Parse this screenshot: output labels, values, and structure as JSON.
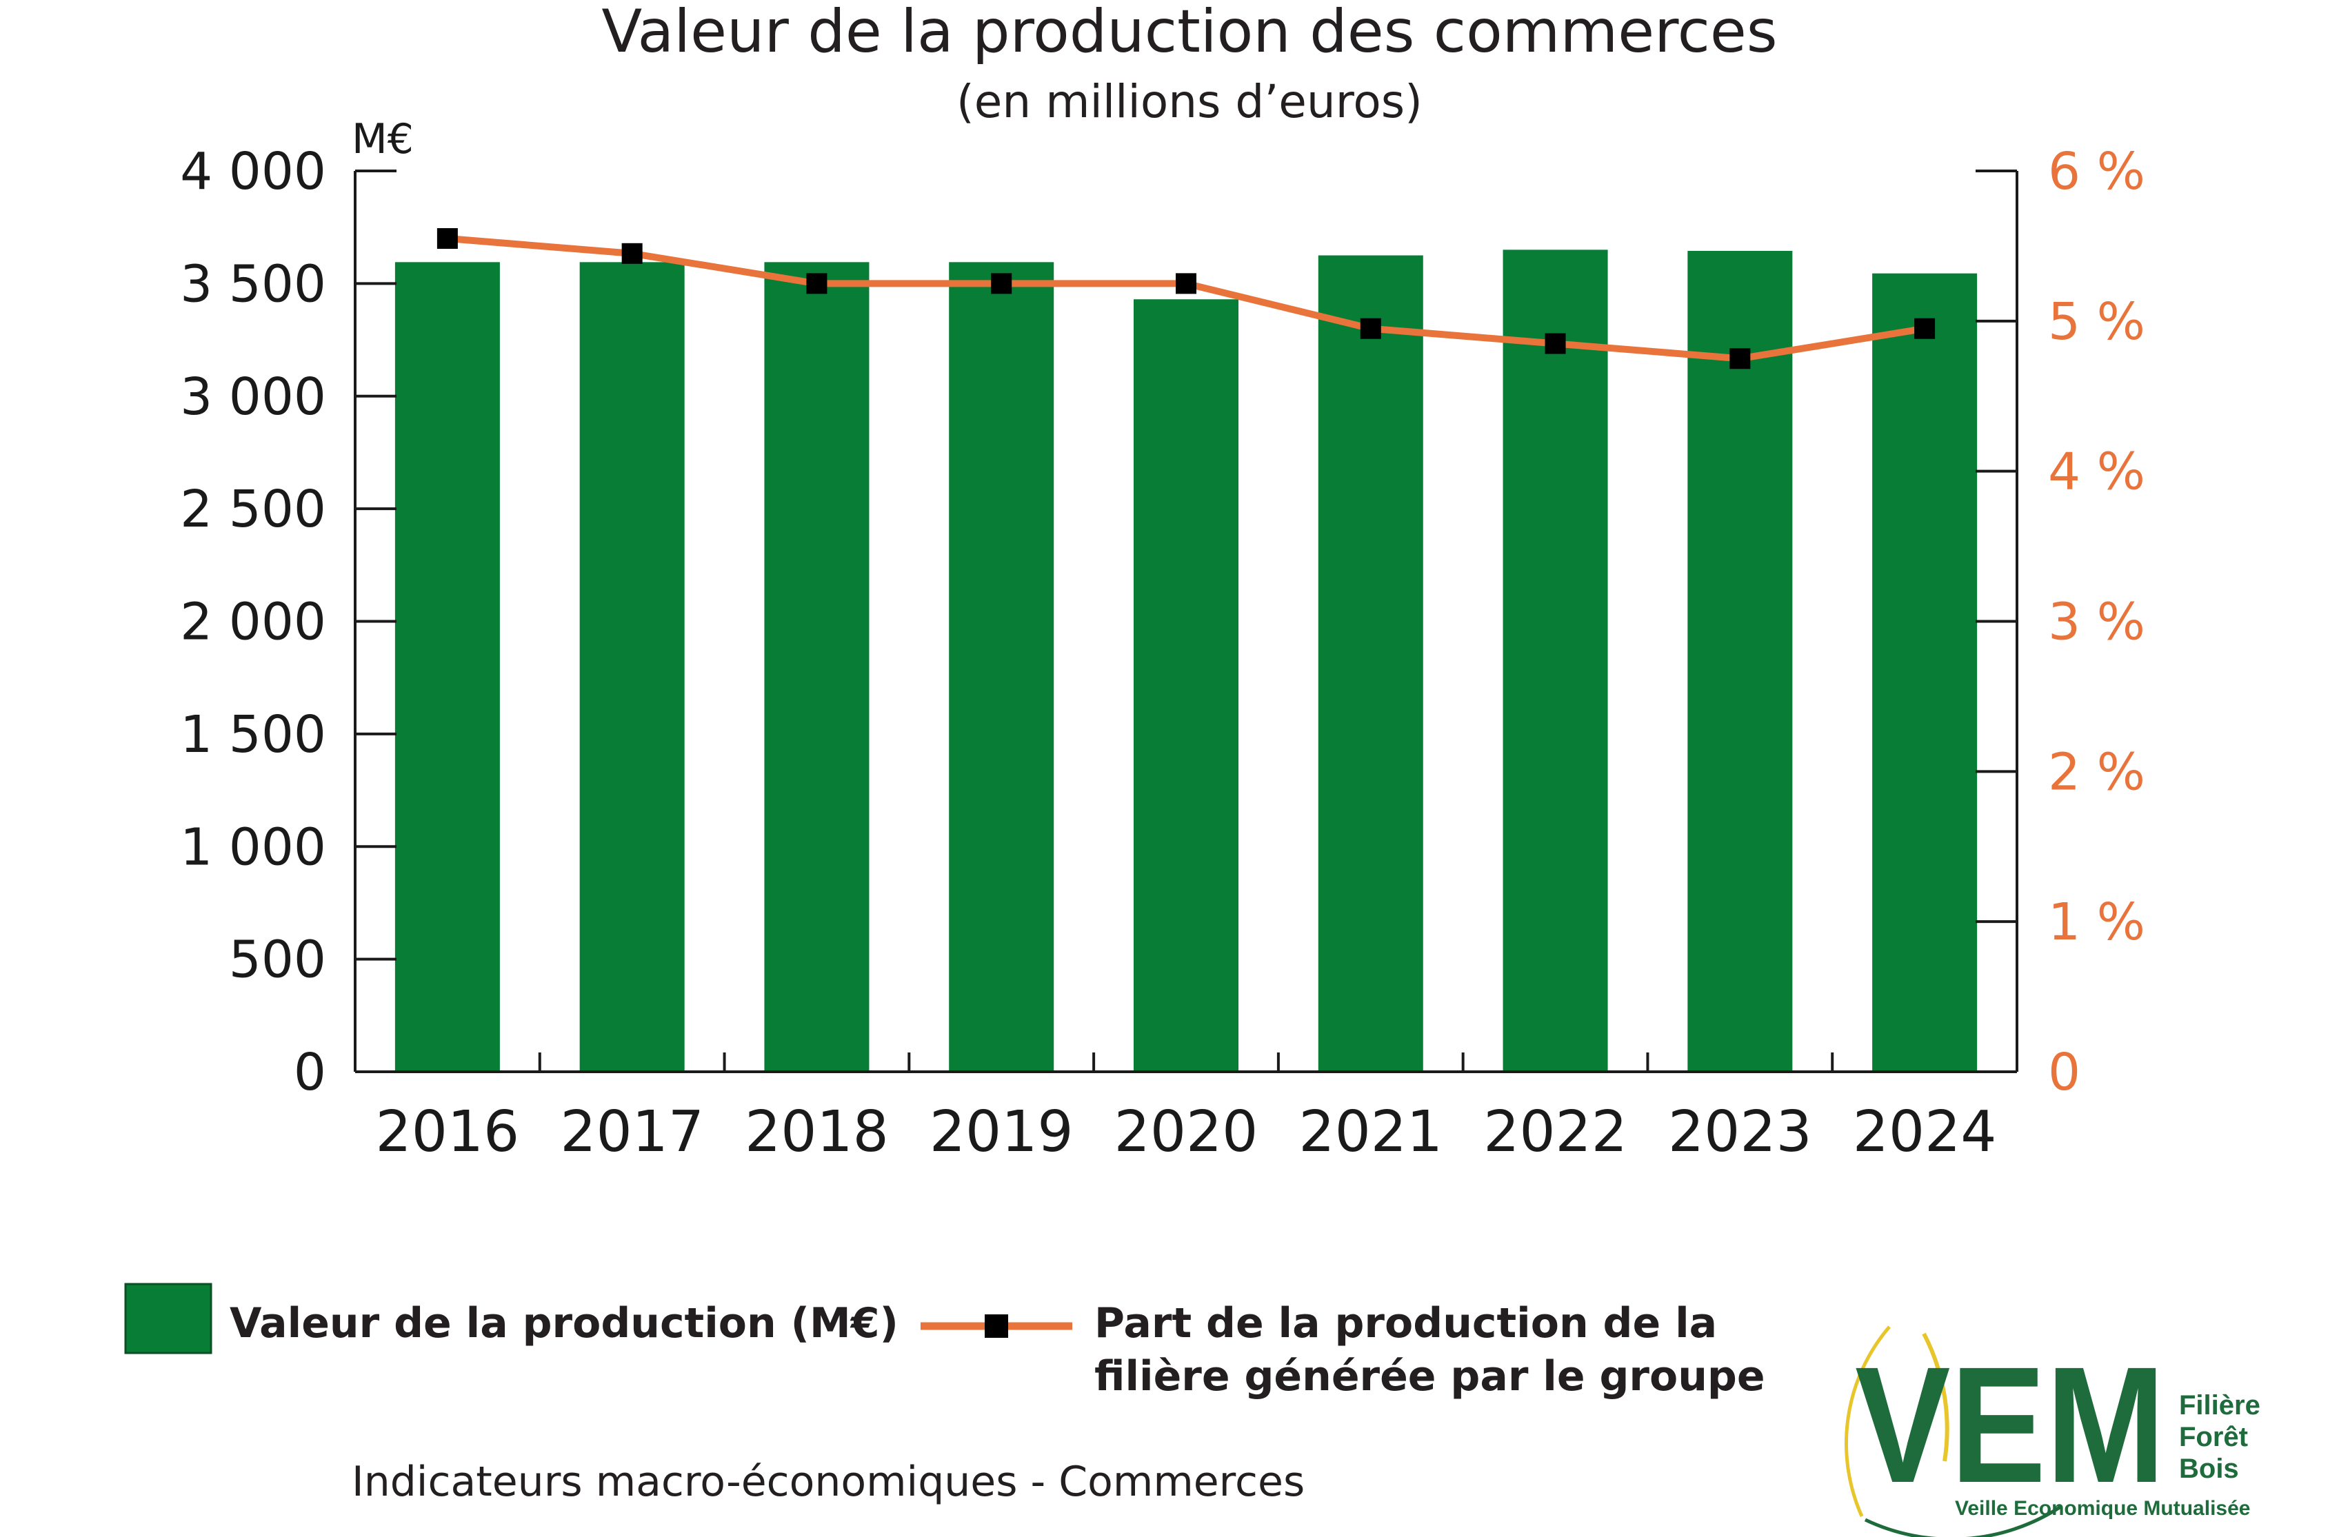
{
  "chart_data": {
    "type": "bar",
    "title": "Valeur de la production des commerces",
    "subtitle": "(en millions d’euros)",
    "y_unit_label": "M€",
    "categories": [
      "2016",
      "2017",
      "2018",
      "2019",
      "2020",
      "2021",
      "2022",
      "2023",
      "2024"
    ],
    "series": [
      {
        "name": "Valeur de la production (M€)",
        "type": "bar",
        "axis": "left",
        "color": "#077d35",
        "values": [
          3595,
          3595,
          3595,
          3595,
          3430,
          3625,
          3650,
          3645,
          3545
        ]
      },
      {
        "name": "Part de la production de la filière générée par le groupe",
        "type": "line",
        "axis": "right",
        "color": "#e8743b",
        "marker_color": "#000000",
        "values": [
          5.55,
          5.45,
          5.25,
          5.25,
          5.25,
          4.95,
          4.85,
          4.75,
          4.95
        ]
      }
    ],
    "ylim_left": [
      0,
      4000
    ],
    "ylim_right": [
      0,
      6
    ],
    "yticks_left": [
      0,
      500,
      1000,
      1500,
      2000,
      2500,
      3000,
      3500,
      4000
    ],
    "yticks_left_labels": [
      "0",
      "500",
      "1 000",
      "1 500",
      "2 000",
      "2 500",
      "3 000",
      "3 500",
      "4 000"
    ],
    "yticks_right": [
      0,
      1,
      2,
      3,
      4,
      5,
      6
    ],
    "yticks_right_labels": [
      "0",
      "1 %",
      "2 %",
      "3 %",
      "4 %",
      "5 %",
      "6 %"
    ],
    "grid": false,
    "legend_placement": "bottom"
  },
  "legend": {
    "bar_label": "Valeur de la production (M€)",
    "line_label_1": "Part de la production de la",
    "line_label_2": "filière générée par le groupe"
  },
  "footer": "Indicateurs macro-économiques - Commerces",
  "logo": {
    "letters": "VEM",
    "line1": "Filière",
    "line2": "Forêt",
    "line3": "Bois",
    "tagline": "Veille Economique Mutualisée"
  },
  "colors": {
    "bar": "#077d35",
    "line": "#e8743b",
    "right_axis_text": "#e8743b",
    "logo_green": "#1e6b3c",
    "logo_yellow": "#e7c52b"
  }
}
